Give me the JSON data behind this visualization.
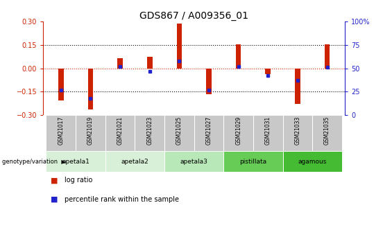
{
  "title": "GDS867 / A009356_01",
  "samples": [
    "GSM21017",
    "GSM21019",
    "GSM21021",
    "GSM21023",
    "GSM21025",
    "GSM21027",
    "GSM21029",
    "GSM21031",
    "GSM21033",
    "GSM21035"
  ],
  "log_ratios": [
    -0.205,
    -0.265,
    0.065,
    0.075,
    0.285,
    -0.165,
    0.155,
    -0.04,
    -0.23,
    0.155
  ],
  "percentile_ranks": [
    27,
    18,
    52,
    47,
    58,
    27,
    52,
    42,
    37,
    51
  ],
  "ylim": [
    -0.3,
    0.3
  ],
  "yticks_left": [
    -0.3,
    -0.15,
    0,
    0.15,
    0.3
  ],
  "yticks_right": [
    0,
    25,
    50,
    75,
    100
  ],
  "bar_color": "#cc2200",
  "dot_color": "#2222cc",
  "zero_line_color": "#cc2200",
  "background_color": "#ffffff",
  "sample_bg_color": "#c8c8c8",
  "bar_width": 0.18,
  "group_configs": [
    {
      "label": "apetala1",
      "start": 0,
      "end": 1,
      "color": "#d8f0d8"
    },
    {
      "label": "apetala2",
      "start": 2,
      "end": 3,
      "color": "#d8f0d8"
    },
    {
      "label": "apetala3",
      "start": 4,
      "end": 5,
      "color": "#b8e8b8"
    },
    {
      "label": "pistillata",
      "start": 6,
      "end": 7,
      "color": "#66cc55"
    },
    {
      "label": "agamous",
      "start": 8,
      "end": 9,
      "color": "#44bb33"
    }
  ],
  "legend_label_red": "log ratio",
  "legend_label_blue": "percentile rank within the sample"
}
